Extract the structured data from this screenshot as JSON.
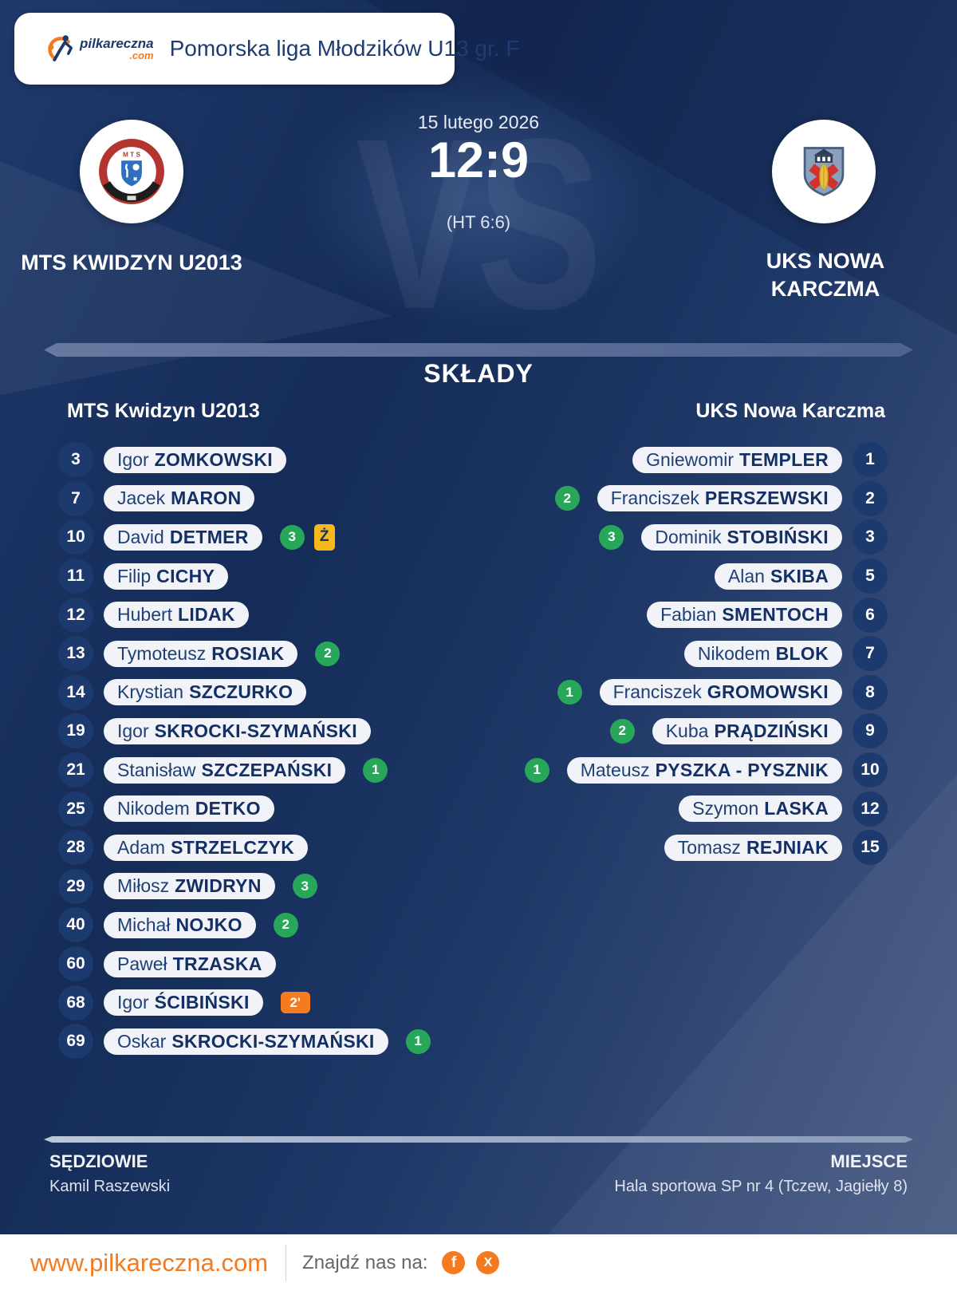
{
  "header": {
    "brand_main": "pilkareczna",
    "brand_tld": ".com",
    "league_title": "Pomorska liga Młodzików U13 gr. F"
  },
  "match": {
    "date": "15 lutego 2026",
    "score": "12:9",
    "halftime": "(HT 6:6)",
    "vs_watermark": "VS",
    "home": {
      "name": "MTS KWIDZYN U2013"
    },
    "away": {
      "name": "UKS NOWA KARCZMA"
    }
  },
  "lineups": {
    "section_title": "SKŁADY",
    "home": {
      "team_label": "MTS Kwidzyn U2013",
      "players": [
        {
          "number": "3",
          "first": "Igor",
          "last": "ZOMKOWSKI",
          "goals": null,
          "card": null
        },
        {
          "number": "7",
          "first": "Jacek",
          "last": "MARON",
          "goals": null,
          "card": null
        },
        {
          "number": "10",
          "first": "David",
          "last": "DETMER",
          "goals": "3",
          "card": "yellow"
        },
        {
          "number": "11",
          "first": "Filip",
          "last": "CICHY",
          "goals": null,
          "card": null
        },
        {
          "number": "12",
          "first": "Hubert",
          "last": "LIDAK",
          "goals": null,
          "card": null
        },
        {
          "number": "13",
          "first": "Tymoteusz",
          "last": "ROSIAK",
          "goals": "2",
          "card": null
        },
        {
          "number": "14",
          "first": "Krystian",
          "last": "SZCZURKO",
          "goals": null,
          "card": null
        },
        {
          "number": "19",
          "first": "Igor",
          "last": "SKROCKI-SZYMAŃSKI",
          "goals": null,
          "card": null
        },
        {
          "number": "21",
          "first": "Stanisław",
          "last": "SZCZEPAŃSKI",
          "goals": "1",
          "card": null
        },
        {
          "number": "25",
          "first": "Nikodem",
          "last": "DETKO",
          "goals": null,
          "card": null
        },
        {
          "number": "28",
          "first": "Adam",
          "last": "STRZELCZYK",
          "goals": null,
          "card": null
        },
        {
          "number": "29",
          "first": "Miłosz",
          "last": "ZWIDRYN",
          "goals": "3",
          "card": null
        },
        {
          "number": "40",
          "first": "Michał",
          "last": "NOJKO",
          "goals": "2",
          "card": null
        },
        {
          "number": "60",
          "first": "Paweł",
          "last": "TRZASKA",
          "goals": null,
          "card": null
        },
        {
          "number": "68",
          "first": "Igor",
          "last": "ŚCIBIŃSKI",
          "goals": null,
          "card": "penalty2"
        },
        {
          "number": "69",
          "first": "Oskar",
          "last": "SKROCKI-SZYMAŃSKI",
          "goals": "1",
          "card": null
        }
      ]
    },
    "away": {
      "team_label": "UKS Nowa Karczma",
      "players": [
        {
          "number": "1",
          "first": "Gniewomir",
          "last": "TEMPLER",
          "goals": null,
          "card": null
        },
        {
          "number": "2",
          "first": "Franciszek",
          "last": "PERSZEWSKI",
          "goals": "2",
          "card": null
        },
        {
          "number": "3",
          "first": "Dominik",
          "last": "STOBIŃSKI",
          "goals": "3",
          "card": null
        },
        {
          "number": "5",
          "first": "Alan",
          "last": "SKIBA",
          "goals": null,
          "card": null
        },
        {
          "number": "6",
          "first": "Fabian",
          "last": "SMENTOCH",
          "goals": null,
          "card": null
        },
        {
          "number": "7",
          "first": "Nikodem",
          "last": "BLOK",
          "goals": null,
          "card": null
        },
        {
          "number": "8",
          "first": "Franciszek",
          "last": "GROMOWSKI",
          "goals": "1",
          "card": null
        },
        {
          "number": "9",
          "first": "Kuba",
          "last": "PRĄDZIŃSKI",
          "goals": "2",
          "card": null
        },
        {
          "number": "10",
          "first": "Mateusz",
          "last": "PYSZKA - PYSZNIK",
          "goals": "1",
          "card": null
        },
        {
          "number": "12",
          "first": "Szymon",
          "last": "LASKA",
          "goals": null,
          "card": null
        },
        {
          "number": "15",
          "first": "Tomasz",
          "last": "REJNIAK",
          "goals": null,
          "card": null
        }
      ]
    }
  },
  "badges": {
    "yellow_card_label": "Ż",
    "penalty_label": "2'"
  },
  "footer": {
    "referees_label": "SĘDZIOWIE",
    "referees": "Kamil Raszewski",
    "venue_label": "MIEJSCE",
    "venue": "Hala sportowa SP nr 4 (Tczew, Jagiełły 8)"
  },
  "bottom_bar": {
    "website": "www.pilkareczna.com",
    "find_us_label": "Znajdź nas na:",
    "social_icons": [
      {
        "name": "facebook-icon",
        "glyph": "f"
      },
      {
        "name": "x-icon",
        "glyph": "X"
      }
    ]
  },
  "colors": {
    "accent_orange": "#f47a20",
    "navy_text": "#14366b",
    "background_dark": "#152c58",
    "background_light": "#4a5c82",
    "pill_background": "#f1f3f8",
    "goal_green": "#28a75b",
    "yellow_card": "#f6b81c",
    "penalty_orange": "#f57b1f",
    "number_circle": "#1c3a6d"
  }
}
